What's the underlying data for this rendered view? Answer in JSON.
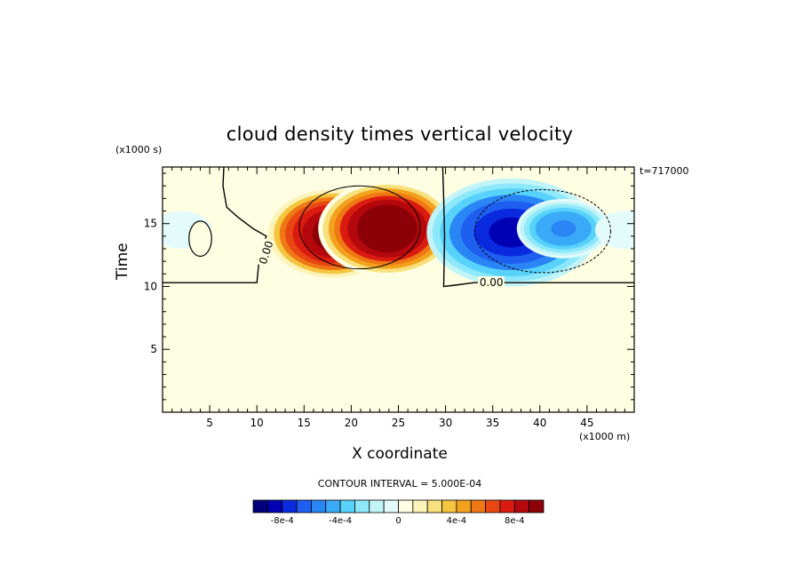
{
  "chart_data": {
    "type": "heatmap",
    "title": "cloud density times vertical velocity",
    "xlabel": "X coordinate",
    "ylabel": "Time",
    "x_unit": "(x1000 m)",
    "y_unit": "(x1000 s)",
    "timestamp": "t=717000",
    "contour_interval_text": "CONTOUR INTERVAL = 5.000E-04",
    "xlim": [
      0,
      50
    ],
    "ylim": [
      0,
      19.5
    ],
    "x_ticks": [
      5,
      10,
      15,
      20,
      25,
      30,
      35,
      40,
      45
    ],
    "y_ticks": [
      5,
      10,
      15
    ],
    "contour_labels": [
      "0.00",
      "0.00"
    ],
    "colorbar": {
      "levels": [
        -0.001,
        -0.00095,
        -0.0009,
        -0.00085,
        -0.0008,
        -0.00075,
        -0.0007,
        -0.00065,
        -0.0006,
        -0.00055,
        -0.0005,
        -0.00045,
        -0.0004,
        -0.00035,
        -0.0003,
        -0.00025,
        -0.0002,
        -0.00015,
        -0.0001,
        -5e-05,
        0.0,
        5e-05,
        0.0001,
        0.00015,
        0.0002,
        0.00025,
        0.0003,
        0.00035,
        0.0004,
        0.00045,
        0.0005,
        0.00055,
        0.0006,
        0.00065,
        0.0007,
        0.00075,
        0.0008,
        0.00085,
        0.0009,
        0.00095,
        0.001
      ],
      "colors": [
        "#00007a",
        "#0000b4",
        "#0a2ae0",
        "#1e5ff0",
        "#2a85f5",
        "#3aaaf8",
        "#57d2fb",
        "#8ee8fb",
        "#c1f4f7",
        "#e3fbfb",
        "#fefee2",
        "#fcf3b8",
        "#f8e07c",
        "#f5c53f",
        "#f2a21d",
        "#f07814",
        "#e84713",
        "#da1b10",
        "#b5080d",
        "#8c0008"
      ],
      "labels": [
        {
          "text": "-8e-4",
          "value": -0.0008
        },
        {
          "text": "-4e-4",
          "value": -0.0004
        },
        {
          "text": "0",
          "value": 0.0
        },
        {
          "text": "4e-4",
          "value": 0.0004
        },
        {
          "text": "8e-4",
          "value": 0.0008
        }
      ]
    },
    "features": [
      {
        "kind": "updraft",
        "peak": 0.00095,
        "x": 18.0,
        "y": 14.2
      },
      {
        "kind": "updraft",
        "peak": 0.001,
        "x": 23.8,
        "y": 14.6
      },
      {
        "kind": "downdraft",
        "peak": -0.00085,
        "x": 37.0,
        "y": 14.3
      },
      {
        "kind": "downdraft",
        "peak": -0.00055,
        "x": 42.5,
        "y": 14.6
      },
      {
        "kind": "downdraft",
        "peak": -0.0001,
        "x": 2.0,
        "y": 14.5
      },
      {
        "kind": "downdraft",
        "peak": -0.0001,
        "x": 49.0,
        "y": 14.5
      }
    ]
  }
}
